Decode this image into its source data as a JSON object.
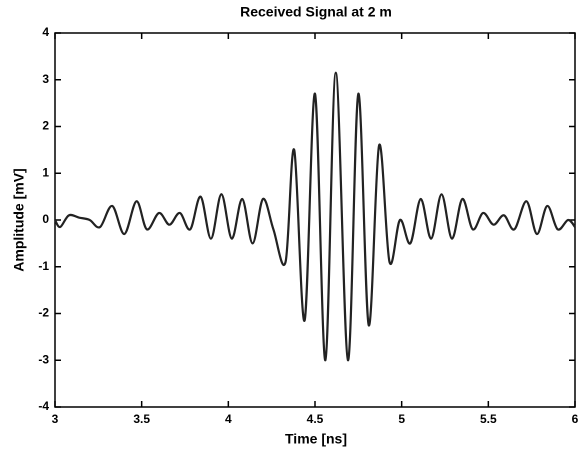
{
  "chart_data": {
    "type": "line",
    "title": "Received Signal at 2 m",
    "xlabel": "Time [ns]",
    "ylabel": "Amplitude [mV]",
    "x": [
      3.0,
      3.03,
      3.08,
      3.14,
      3.2,
      3.26,
      3.33,
      3.4,
      3.47,
      3.53,
      3.6,
      3.66,
      3.72,
      3.78,
      3.84,
      3.9,
      3.96,
      4.02,
      4.08,
      4.14,
      4.2,
      4.26,
      4.33,
      4.38,
      4.44,
      4.5,
      4.56,
      4.62,
      4.69,
      4.75,
      4.81,
      4.87,
      4.93,
      4.99,
      5.05,
      5.11,
      5.17,
      5.23,
      5.29,
      5.35,
      5.41,
      5.47,
      5.53,
      5.59,
      5.65,
      5.72,
      5.78,
      5.84,
      5.9,
      5.96,
      6.0
    ],
    "series": [
      {
        "color": "#222222",
        "values": [
          0.0,
          -0.15,
          0.1,
          0.05,
          0.0,
          -0.15,
          0.3,
          -0.3,
          0.4,
          -0.2,
          0.15,
          -0.1,
          0.15,
          -0.2,
          0.5,
          -0.4,
          0.55,
          -0.4,
          0.45,
          -0.5,
          0.45,
          -0.2,
          -0.9,
          1.5,
          -2.15,
          2.7,
          -3.0,
          3.15,
          -3.0,
          2.7,
          -2.25,
          1.6,
          -0.9,
          0.0,
          -0.5,
          0.45,
          -0.4,
          0.55,
          -0.4,
          0.45,
          -0.2,
          0.15,
          -0.1,
          0.1,
          -0.2,
          0.4,
          -0.3,
          0.3,
          -0.2,
          0.0,
          -0.15
        ]
      }
    ],
    "xlim": [
      3,
      6
    ],
    "ylim": [
      -4,
      4
    ],
    "xticks": [
      3,
      3.5,
      4,
      4.5,
      5,
      5.5,
      6
    ],
    "yticks": [
      -4,
      -3,
      -2,
      -1,
      0,
      1,
      2,
      3,
      4
    ],
    "grid": false
  }
}
